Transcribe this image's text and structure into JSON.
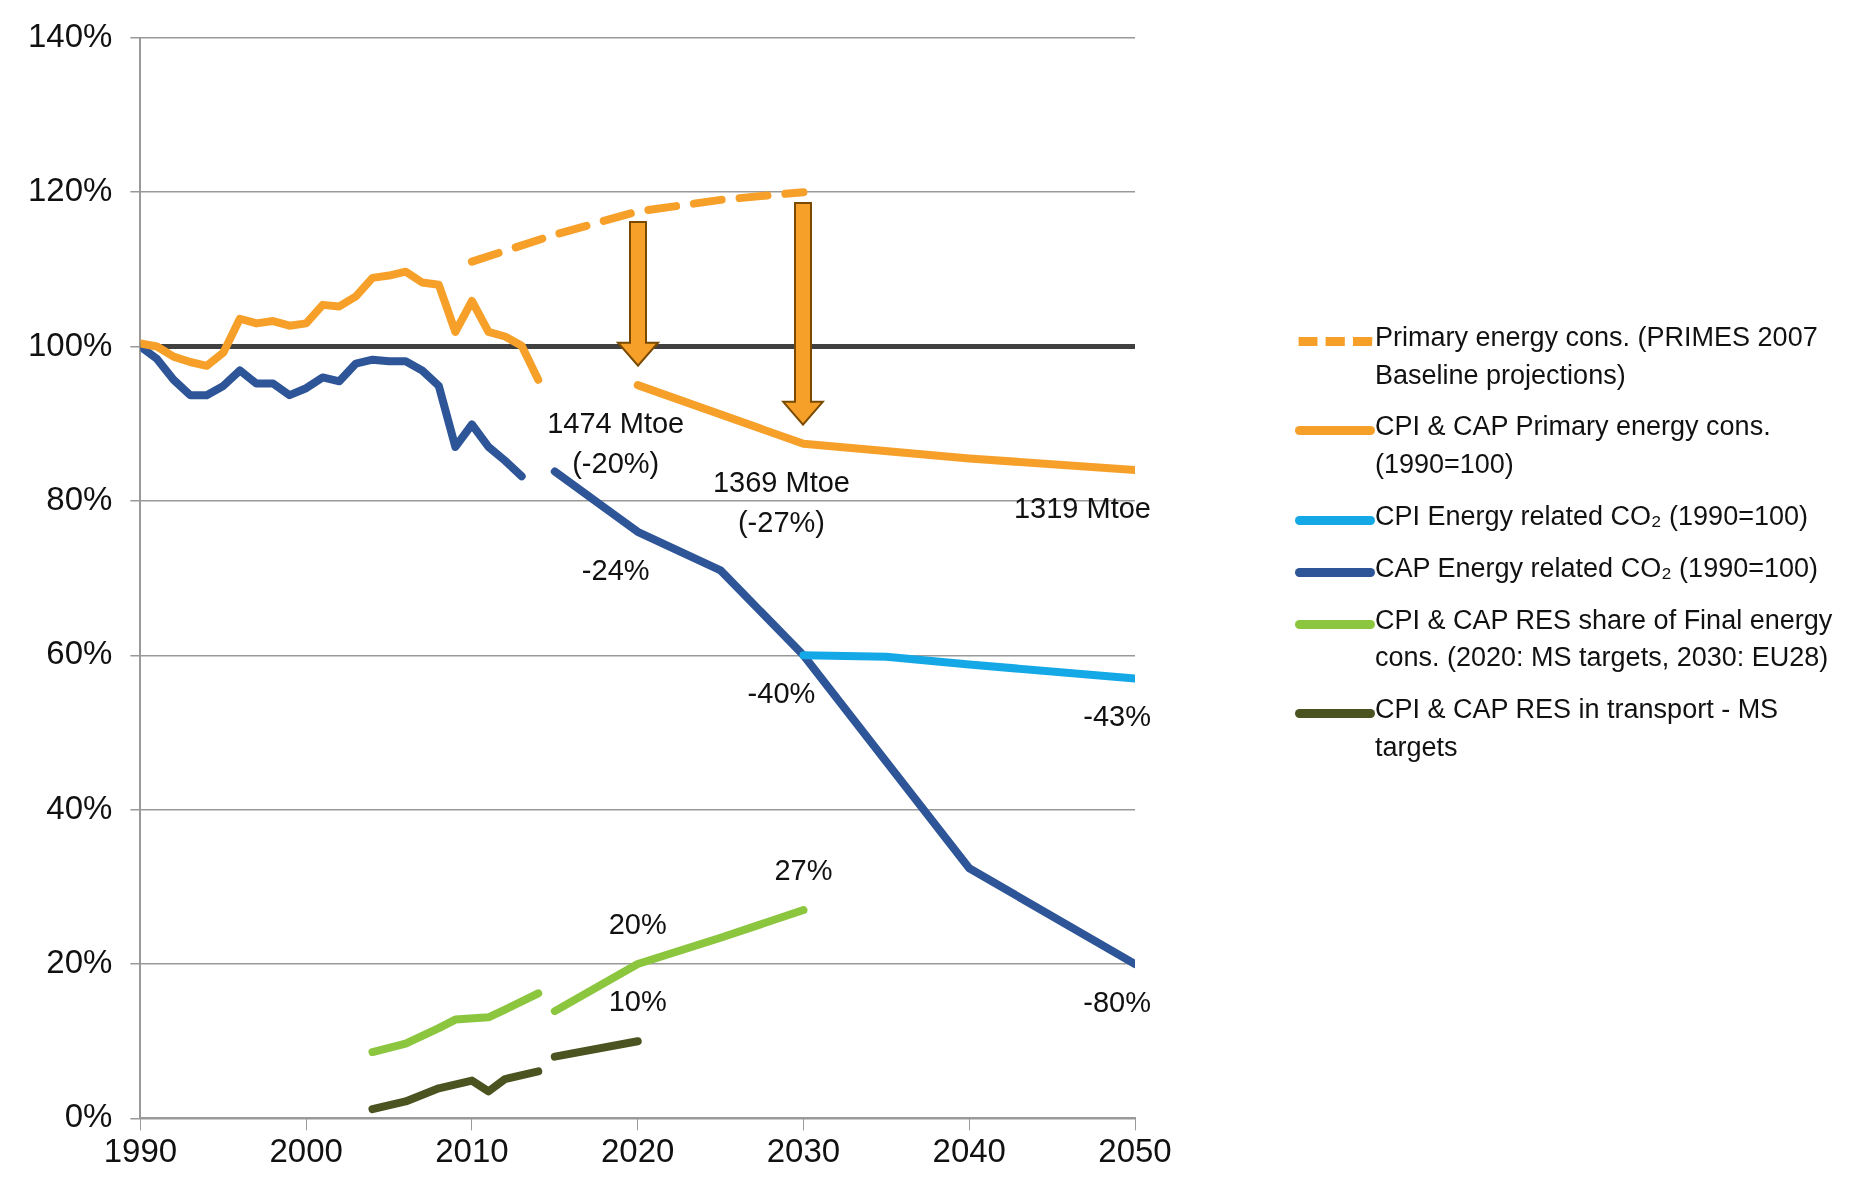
{
  "chart_data": {
    "type": "line",
    "xlim": [
      1990,
      2050
    ],
    "xticks": [
      1990,
      2000,
      2010,
      2020,
      2030,
      2040,
      2050
    ],
    "ylim": [
      0,
      140
    ],
    "yticks": [
      {
        "value": 0,
        "label": "0%"
      },
      {
        "value": 20,
        "label": "20%"
      },
      {
        "value": 40,
        "label": "40%"
      },
      {
        "value": 60,
        "label": "60%"
      },
      {
        "value": 80,
        "label": "80%"
      },
      {
        "value": 100,
        "label": "100%"
      },
      {
        "value": 120,
        "label": "120%"
      },
      {
        "value": 140,
        "label": "140%"
      }
    ],
    "grid": "y",
    "legend": "right",
    "marker": "none",
    "series": [
      {
        "name": "Primary energy cons. (PRIMES 2007 Baseline projections)",
        "color": "#f6a02a",
        "line_style": "dashed",
        "x": [
          2010,
          2015,
          2020,
          2025,
          2030
        ],
        "values": [
          111,
          114.5,
          117.5,
          119,
          120
        ]
      },
      {
        "name": "CPI & CAP Primary energy cons. (1990=100)",
        "color": "#f6a02a",
        "line_style": "solid",
        "x": [
          1990,
          1991,
          1992,
          1993,
          1994,
          1995,
          1996,
          1997,
          1998,
          1999,
          2000,
          2001,
          2002,
          2003,
          2004,
          2005,
          2006,
          2007,
          2008,
          2009,
          2010,
          2011,
          2012,
          2013,
          2014,
          2017,
          2020,
          2030,
          2040,
          2050
        ],
        "values": [
          100.4,
          100,
          98.7,
          98,
          97.5,
          99.2,
          103.6,
          103,
          103.3,
          102.7,
          103,
          105.4,
          105.2,
          106.5,
          108.9,
          109.2,
          109.7,
          108.3,
          108,
          101.9,
          105.9,
          101.9,
          101.3,
          100.1,
          95.7,
          null,
          95,
          87.4,
          85.5,
          84
        ]
      },
      {
        "name": "CPI Energy related CO₂ (1990=100)",
        "color": "#14a9e6",
        "line_style": "solid",
        "x": [
          2030,
          2035,
          2040,
          2050
        ],
        "values": [
          60,
          59.8,
          58.8,
          57
        ]
      },
      {
        "name": "CAP Energy related CO₂ (1990=100)",
        "color": "#2e5597",
        "line_style": "solid",
        "x": [
          1990,
          1991,
          1992,
          1993,
          1994,
          1995,
          1996,
          1997,
          1998,
          1999,
          2000,
          2001,
          2002,
          2003,
          2004,
          2005,
          2006,
          2007,
          2008,
          2009,
          2010,
          2011,
          2012,
          2013,
          2014,
          2015,
          2020,
          2025,
          2030,
          2040,
          2050
        ],
        "values": [
          100,
          98.4,
          95.7,
          93.7,
          93.7,
          94.9,
          96.9,
          95.2,
          95.2,
          93.7,
          94.6,
          96,
          95.5,
          97.8,
          98.3,
          98.1,
          98.1,
          96.9,
          94.9,
          87,
          89.9,
          87,
          85.2,
          83.2,
          null,
          83.8,
          76,
          71,
          60,
          32.4,
          20
        ]
      },
      {
        "name": "CPI & CAP RES share of Final energy cons. (2020: MS targets, 2030: EU28)",
        "color": "#8cc63f",
        "line_style": "solid",
        "x": [
          2004,
          2006,
          2008,
          2009,
          2011,
          2012,
          2014,
          2014.5,
          2015,
          2020,
          2025,
          2030
        ],
        "values": [
          8.6,
          9.7,
          11.7,
          12.8,
          13.1,
          14.1,
          16.2,
          null,
          13.9,
          20,
          23.4,
          27
        ]
      },
      {
        "name": "CPI & CAP RES in transport - MS targets",
        "color": "#4b5320",
        "line_style": "solid",
        "x": [
          2004,
          2006,
          2008,
          2010,
          2011,
          2012,
          2014,
          2014.5,
          2015,
          2020
        ],
        "values": [
          1.2,
          2.2,
          3.9,
          4.9,
          3.5,
          5.1,
          6.1,
          null,
          8,
          10
        ]
      }
    ],
    "ref_lines": [
      {
        "axis": "y",
        "value": 100,
        "color": "#404040"
      }
    ],
    "annotations": [
      {
        "text": "1474 Mtoe\n(-20%)",
        "x": 2020,
        "y": 95
      },
      {
        "text": "1369 Mtoe\n(-27%)",
        "x": 2030,
        "y": 87.4
      },
      {
        "text": "1319 Mtoe",
        "x": 2050,
        "y": 84
      },
      {
        "text": "-24%",
        "x": 2020,
        "y": 76
      },
      {
        "text": "-40%",
        "x": 2030,
        "y": 60
      },
      {
        "text": "-43%",
        "x": 2050,
        "y": 57
      },
      {
        "text": "-80%",
        "x": 2050,
        "y": 20
      },
      {
        "text": "27%",
        "x": 2030,
        "y": 27
      },
      {
        "text": "20%",
        "x": 2020,
        "y": 20
      },
      {
        "text": "10%",
        "x": 2020,
        "y": 10
      }
    ]
  }
}
